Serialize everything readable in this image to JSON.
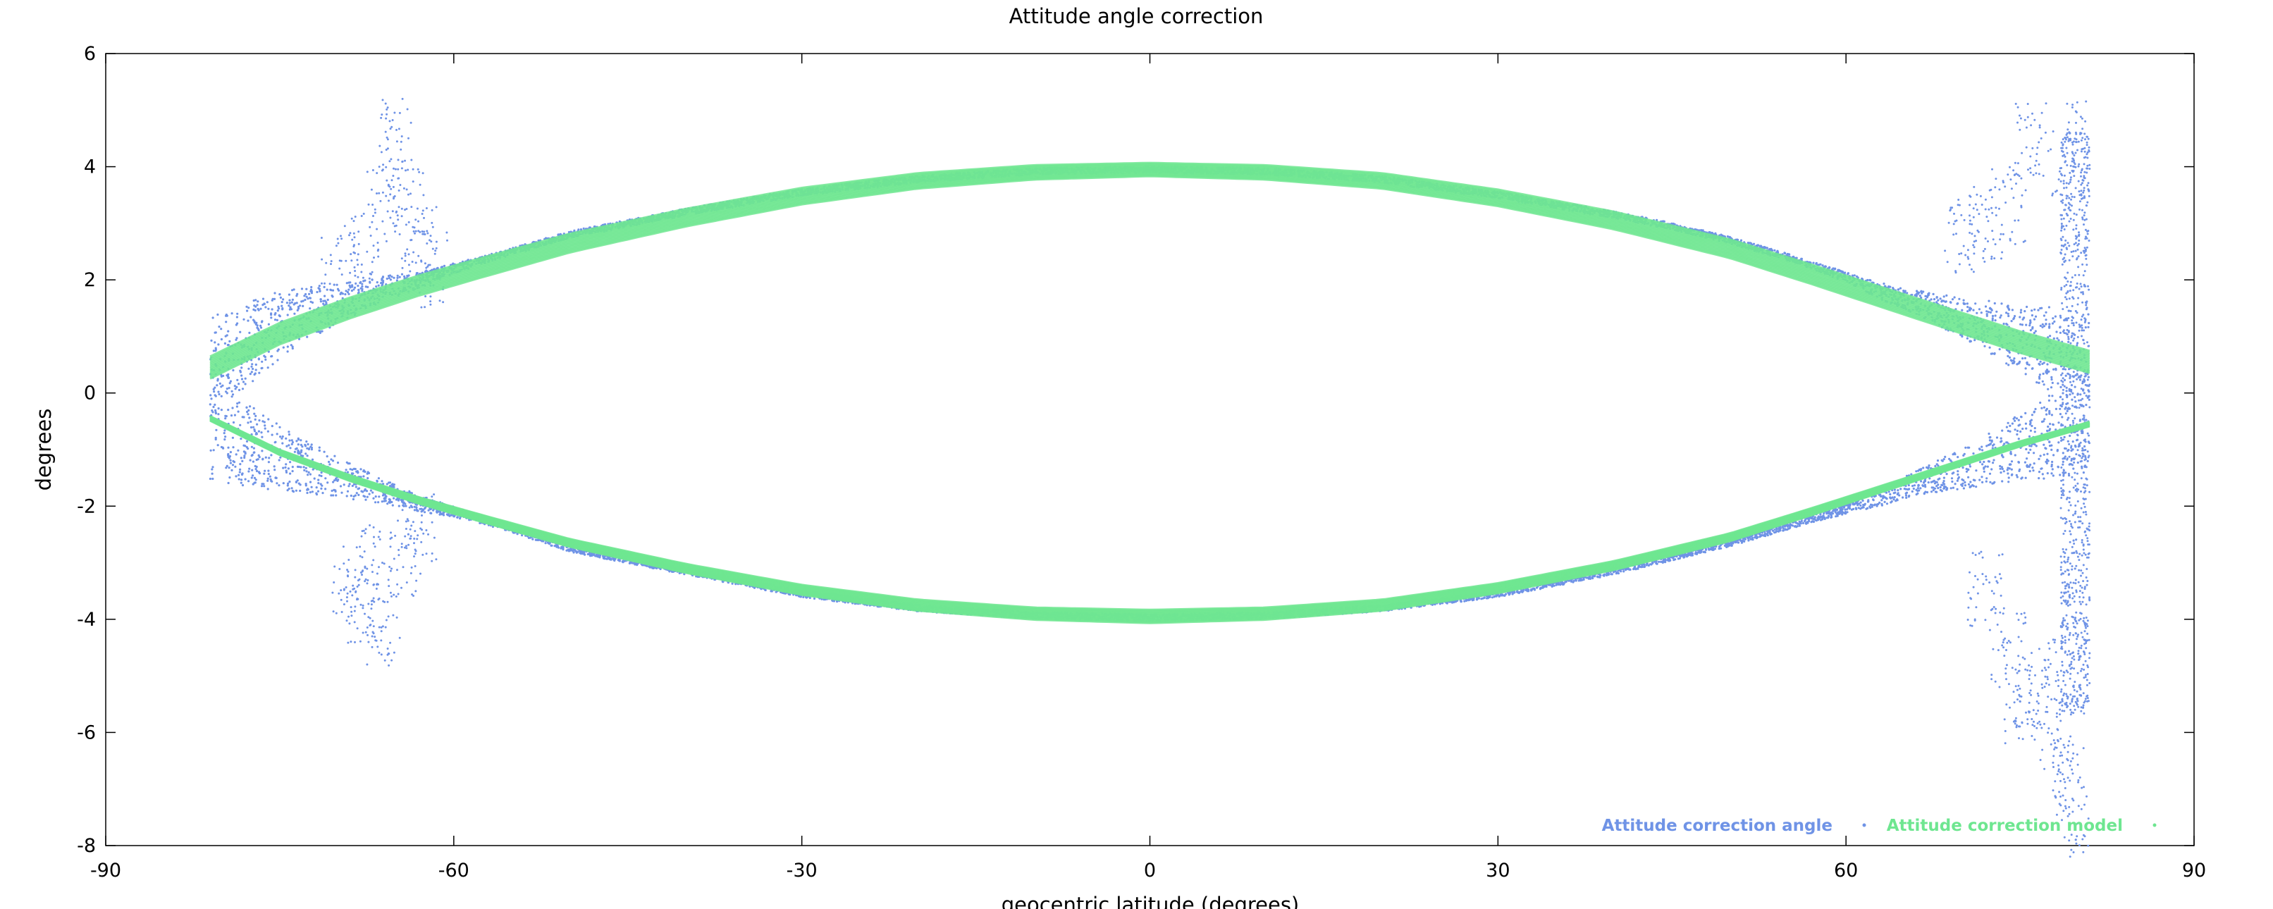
{
  "chart_data": {
    "type": "scatter",
    "title": "Attitude angle correction",
    "xlabel": "geocentric latitude (degrees)",
    "ylabel": "degrees",
    "xlim": [
      -90,
      90
    ],
    "ylim": [
      -8,
      6
    ],
    "xticks": [
      -90,
      -60,
      -30,
      0,
      30,
      60,
      90
    ],
    "yticks": [
      -8,
      -6,
      -4,
      -2,
      0,
      2,
      4,
      6
    ],
    "grid": false,
    "legend_position": "bottom-right",
    "series": [
      {
        "name": "Attitude correction angle",
        "color": "#6f93e6",
        "marker": "dot",
        "upper_branch": {
          "x": [
            -81,
            -78,
            -75,
            -72,
            -69,
            -66,
            -63,
            -60,
            -55,
            -50,
            -45,
            -40,
            -30,
            -20,
            -10,
            0,
            10,
            20,
            30,
            40,
            45,
            50,
            55,
            60,
            63,
            66,
            69,
            72,
            75,
            78,
            81
          ],
          "y": [
            0.4,
            0.85,
            1.2,
            1.45,
            1.65,
            1.85,
            2.0,
            2.2,
            2.5,
            2.8,
            3.0,
            3.2,
            3.55,
            3.78,
            3.92,
            3.95,
            3.92,
            3.78,
            3.5,
            3.15,
            2.95,
            2.7,
            2.4,
            2.05,
            1.8,
            1.6,
            1.4,
            1.2,
            0.95,
            0.75,
            0.55
          ]
        },
        "lower_branch": {
          "x": [
            -81,
            -78,
            -75,
            -72,
            -69,
            -66,
            -63,
            -60,
            -55,
            -50,
            -45,
            -40,
            -30,
            -20,
            -10,
            0,
            10,
            20,
            30,
            40,
            45,
            50,
            55,
            60,
            63,
            66,
            69,
            72,
            75,
            78,
            81
          ],
          "y": [
            -0.6,
            -0.9,
            -1.15,
            -1.35,
            -1.55,
            -1.75,
            -1.95,
            -2.1,
            -2.4,
            -2.75,
            -2.95,
            -3.15,
            -3.55,
            -3.8,
            -3.93,
            -3.97,
            -3.93,
            -3.8,
            -3.55,
            -3.15,
            -2.9,
            -2.65,
            -2.35,
            -2.05,
            -1.85,
            -1.6,
            -1.4,
            -1.2,
            -0.95,
            -0.75,
            -0.55
          ]
        },
        "scatter_outliers": {
          "x": [
            -70,
            -68,
            -66,
            -65,
            -64,
            -63,
            -62,
            -67,
            -68,
            -69,
            -66,
            -64,
            -63,
            70,
            72,
            74,
            76,
            78,
            79,
            80,
            80.5,
            78,
            76,
            74,
            72,
            75,
            79,
            80
          ],
          "y": [
            2.1,
            2.5,
            3.3,
            4.6,
            3.5,
            2.6,
            2.2,
            -3.0,
            -3.8,
            -3.4,
            -4.2,
            -2.9,
            -2.4,
            2.8,
            3.0,
            3.3,
            4.5,
            -5.0,
            4.0,
            -7.5,
            4.6,
            -6.0,
            -5.2,
            -4.5,
            -3.5,
            -5.5,
            -6.8,
            -4.0
          ]
        }
      },
      {
        "name": "Attitude correction model",
        "color": "#6ee690",
        "marker": "dot",
        "upper_branch": {
          "x": [
            -81,
            -75,
            -69,
            -63,
            -57,
            -50,
            -40,
            -30,
            -20,
            -10,
            0,
            10,
            20,
            30,
            40,
            50,
            57,
            63,
            69,
            75,
            81
          ],
          "y": [
            0.45,
            1.05,
            1.5,
            1.9,
            2.25,
            2.65,
            3.1,
            3.48,
            3.75,
            3.9,
            3.95,
            3.9,
            3.75,
            3.45,
            3.05,
            2.55,
            2.1,
            1.7,
            1.3,
            0.9,
            0.55
          ]
        },
        "lower_branch": {
          "x": [
            -81,
            -75,
            -69,
            -63,
            -57,
            -50,
            -40,
            -30,
            -20,
            -10,
            0,
            10,
            20,
            30,
            40,
            50,
            57,
            63,
            69,
            75,
            81
          ],
          "y": [
            -0.45,
            -1.05,
            -1.5,
            -1.9,
            -2.25,
            -2.65,
            -3.1,
            -3.48,
            -3.75,
            -3.9,
            -3.95,
            -3.9,
            -3.75,
            -3.45,
            -3.05,
            -2.55,
            -2.1,
            -1.7,
            -1.3,
            -0.9,
            -0.55
          ]
        }
      }
    ]
  }
}
